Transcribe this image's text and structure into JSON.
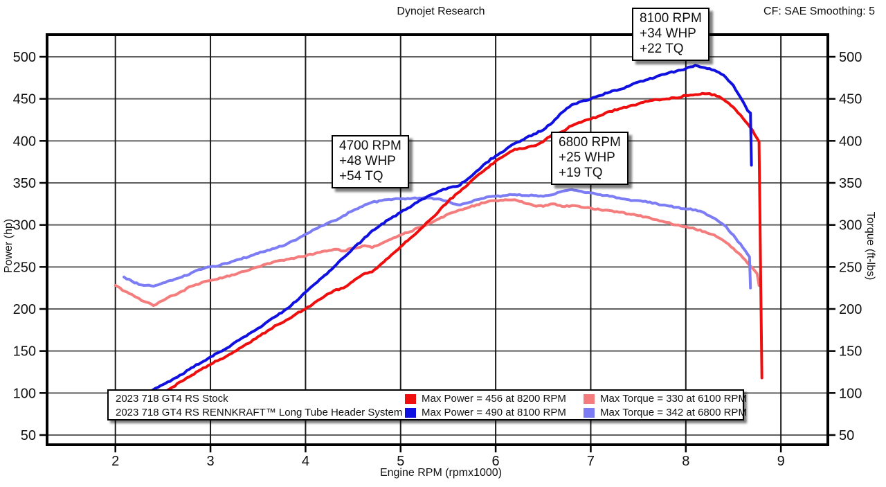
{
  "header": {
    "title": "Dynojet Research",
    "correction": "CF: SAE Smoothing: 5"
  },
  "axes": {
    "x_label": "Engine RPM (rpmx1000)",
    "y_left_label": "Power (hp)",
    "y_right_label": "Torque (ft-lbs)"
  },
  "annotations": [
    {
      "id": "8100",
      "lines": [
        "8100 RPM",
        "+34 WHP",
        "+22 TQ"
      ]
    },
    {
      "id": "4700",
      "lines": [
        "4700 RPM",
        "+48 WHP",
        "+54 TQ"
      ]
    },
    {
      "id": "6800",
      "lines": [
        "6800 RPM",
        "+25 WHP",
        "+19 TQ"
      ]
    }
  ],
  "legend": {
    "rows": [
      {
        "name": "2023 718 GT4 RS Stock",
        "power_label": "Max Power = 456 at 8200 RPM",
        "torque_label": "Max Torque = 330 at 6100 RPM"
      },
      {
        "name": "2023 718 GT4 RS RENNKRAFT™ Long Tube Header System",
        "power_label": "Max Power = 490 at 8100 RPM",
        "torque_label": "Max Torque = 342 at 6800 RPM"
      }
    ]
  },
  "chart_data": {
    "type": "line",
    "title": "Dynojet Research",
    "correction": "CF: SAE Smoothing: 5",
    "xlabel": "Engine RPM (rpmx1000)",
    "ylabel_left": "Power (hp)",
    "ylabel_right": "Torque (ft-lbs)",
    "x_ticks": [
      2,
      3,
      4,
      5,
      6,
      7,
      8,
      9
    ],
    "y_ticks": [
      50,
      100,
      150,
      200,
      250,
      300,
      350,
      400,
      450,
      500
    ],
    "x_range_rpm": [
      1270,
      9500
    ],
    "y_range": [
      37,
      527
    ],
    "grid": true,
    "legend_position": "bottom",
    "max_values": {
      "stock_max_power": {
        "value": 456,
        "rpm": 8200
      },
      "mod_max_power": {
        "value": 490,
        "rpm": 8100
      },
      "stock_max_torque": {
        "value": 330,
        "rpm": 6100
      },
      "mod_max_torque": {
        "value": 342,
        "rpm": 6800
      }
    },
    "colors": {
      "power_stock": "#ee0e0e",
      "power_mod": "#1010e0",
      "torque_stock": "#f47c7c",
      "torque_mod": "#7c7cf4",
      "grid_vertical": "#1a1a1a",
      "grid_horizontal": "#5f5f5f",
      "border": "#000000"
    },
    "series": [
      {
        "name": "Stock Torque (ft-lbs)",
        "role": "torque_stock",
        "color": "#f47c7c",
        "axis": "right",
        "points": [
          [
            2000,
            228
          ],
          [
            2100,
            221
          ],
          [
            2200,
            215
          ],
          [
            2300,
            209
          ],
          [
            2400,
            204
          ],
          [
            2500,
            210
          ],
          [
            2600,
            216
          ],
          [
            2700,
            221
          ],
          [
            2800,
            227
          ],
          [
            2900,
            231
          ],
          [
            3000,
            234
          ],
          [
            3100,
            237
          ],
          [
            3200,
            239
          ],
          [
            3300,
            243
          ],
          [
            3400,
            246
          ],
          [
            3500,
            250
          ],
          [
            3600,
            254
          ],
          [
            3700,
            257
          ],
          [
            3800,
            259
          ],
          [
            3900,
            261
          ],
          [
            4000,
            263
          ],
          [
            4100,
            266
          ],
          [
            4200,
            269
          ],
          [
            4300,
            271
          ],
          [
            4400,
            269
          ],
          [
            4500,
            272
          ],
          [
            4600,
            275
          ],
          [
            4700,
            273
          ],
          [
            4800,
            278
          ],
          [
            4900,
            283
          ],
          [
            5000,
            288
          ],
          [
            5100,
            292
          ],
          [
            5200,
            297
          ],
          [
            5300,
            302
          ],
          [
            5400,
            307
          ],
          [
            5500,
            313
          ],
          [
            5600,
            317
          ],
          [
            5700,
            320
          ],
          [
            5800,
            324
          ],
          [
            5900,
            327
          ],
          [
            6000,
            329
          ],
          [
            6100,
            330
          ],
          [
            6200,
            330
          ],
          [
            6300,
            326
          ],
          [
            6400,
            323
          ],
          [
            6500,
            322
          ],
          [
            6600,
            325
          ],
          [
            6700,
            322
          ],
          [
            6800,
            323
          ],
          [
            6900,
            321
          ],
          [
            7000,
            320
          ],
          [
            7100,
            318
          ],
          [
            7200,
            317
          ],
          [
            7300,
            315
          ],
          [
            7400,
            313
          ],
          [
            7500,
            311
          ],
          [
            7600,
            309
          ],
          [
            7700,
            306
          ],
          [
            7800,
            303
          ],
          [
            7900,
            300
          ],
          [
            8000,
            298
          ],
          [
            8100,
            295
          ],
          [
            8200,
            292
          ],
          [
            8300,
            288
          ],
          [
            8400,
            281
          ],
          [
            8500,
            272
          ],
          [
            8600,
            261
          ],
          [
            8700,
            249
          ],
          [
            8750,
            242
          ],
          [
            8770,
            228
          ]
        ]
      },
      {
        "name": "RENNKRAFT Torque (ft-lbs)",
        "role": "torque_mod",
        "color": "#7c7cf4",
        "axis": "right",
        "points": [
          [
            2090,
            238
          ],
          [
            2200,
            231
          ],
          [
            2300,
            228
          ],
          [
            2400,
            227
          ],
          [
            2500,
            231
          ],
          [
            2600,
            234
          ],
          [
            2700,
            238
          ],
          [
            2800,
            243
          ],
          [
            2900,
            247
          ],
          [
            3000,
            250
          ],
          [
            3100,
            252
          ],
          [
            3200,
            255
          ],
          [
            3300,
            259
          ],
          [
            3400,
            262
          ],
          [
            3500,
            266
          ],
          [
            3600,
            270
          ],
          [
            3700,
            273
          ],
          [
            3800,
            277
          ],
          [
            3900,
            282
          ],
          [
            4000,
            289
          ],
          [
            4100,
            295
          ],
          [
            4200,
            300
          ],
          [
            4300,
            305
          ],
          [
            4400,
            311
          ],
          [
            4500,
            317
          ],
          [
            4600,
            322
          ],
          [
            4700,
            327
          ],
          [
            4800,
            329
          ],
          [
            4900,
            330
          ],
          [
            5000,
            331
          ],
          [
            5100,
            331
          ],
          [
            5200,
            332
          ],
          [
            5300,
            332
          ],
          [
            5400,
            331
          ],
          [
            5500,
            328
          ],
          [
            5600,
            324
          ],
          [
            5700,
            326
          ],
          [
            5800,
            330
          ],
          [
            5900,
            333
          ],
          [
            6000,
            334
          ],
          [
            6100,
            335
          ],
          [
            6200,
            336
          ],
          [
            6300,
            335
          ],
          [
            6400,
            335
          ],
          [
            6500,
            334
          ],
          [
            6600,
            336
          ],
          [
            6700,
            340
          ],
          [
            6800,
            342
          ],
          [
            6900,
            340
          ],
          [
            7000,
            338
          ],
          [
            7100,
            336
          ],
          [
            7200,
            334
          ],
          [
            7300,
            332
          ],
          [
            7400,
            330
          ],
          [
            7500,
            329
          ],
          [
            7600,
            327
          ],
          [
            7700,
            325
          ],
          [
            7800,
            323
          ],
          [
            7900,
            321
          ],
          [
            8000,
            319
          ],
          [
            8100,
            318
          ],
          [
            8200,
            314
          ],
          [
            8300,
            308
          ],
          [
            8400,
            300
          ],
          [
            8500,
            288
          ],
          [
            8600,
            273
          ],
          [
            8650,
            265
          ],
          [
            8670,
            262
          ],
          [
            8680,
            225
          ]
        ]
      },
      {
        "name": "Stock Power (hp)",
        "role": "power_stock",
        "color": "#ee0e0e",
        "axis": "left",
        "points": [
          [
            2000,
            87
          ],
          [
            2100,
            88
          ],
          [
            2200,
            90
          ],
          [
            2300,
            92
          ],
          [
            2400,
            93
          ],
          [
            2500,
            100
          ],
          [
            2600,
            107
          ],
          [
            2700,
            114
          ],
          [
            2800,
            121
          ],
          [
            2900,
            128
          ],
          [
            3000,
            134
          ],
          [
            3100,
            140
          ],
          [
            3200,
            146
          ],
          [
            3300,
            153
          ],
          [
            3400,
            159
          ],
          [
            3500,
            167
          ],
          [
            3600,
            174
          ],
          [
            3700,
            181
          ],
          [
            3800,
            187
          ],
          [
            3900,
            194
          ],
          [
            4000,
            200
          ],
          [
            4100,
            208
          ],
          [
            4200,
            215
          ],
          [
            4300,
            222
          ],
          [
            4400,
            225
          ],
          [
            4500,
            233
          ],
          [
            4600,
            241
          ],
          [
            4700,
            244
          ],
          [
            4800,
            254
          ],
          [
            4900,
            264
          ],
          [
            5000,
            274
          ],
          [
            5100,
            284
          ],
          [
            5200,
            294
          ],
          [
            5300,
            305
          ],
          [
            5400,
            316
          ],
          [
            5500,
            328
          ],
          [
            5600,
            338
          ],
          [
            5700,
            347
          ],
          [
            5800,
            358
          ],
          [
            5900,
            367
          ],
          [
            6000,
            376
          ],
          [
            6100,
            383
          ],
          [
            6200,
            390
          ],
          [
            6300,
            391
          ],
          [
            6400,
            394
          ],
          [
            6500,
            399
          ],
          [
            6600,
            408
          ],
          [
            6700,
            411
          ],
          [
            6800,
            418
          ],
          [
            6900,
            422
          ],
          [
            7000,
            426
          ],
          [
            7100,
            430
          ],
          [
            7200,
            435
          ],
          [
            7300,
            438
          ],
          [
            7400,
            441
          ],
          [
            7500,
            444
          ],
          [
            7600,
            447
          ],
          [
            7700,
            449
          ],
          [
            7800,
            450
          ],
          [
            7900,
            451
          ],
          [
            8000,
            454
          ],
          [
            8100,
            455
          ],
          [
            8200,
            456
          ],
          [
            8300,
            455
          ],
          [
            8400,
            449
          ],
          [
            8500,
            440
          ],
          [
            8600,
            427
          ],
          [
            8700,
            413
          ],
          [
            8750,
            403
          ],
          [
            8770,
            399
          ],
          [
            8800,
            118
          ]
        ]
      },
      {
        "name": "RENNKRAFT Power (hp)",
        "role": "power_mod",
        "color": "#1010e0",
        "axis": "left",
        "points": [
          [
            2090,
            95
          ],
          [
            2200,
            97
          ],
          [
            2300,
            100
          ],
          [
            2400,
            104
          ],
          [
            2500,
            110
          ],
          [
            2600,
            116
          ],
          [
            2700,
            122
          ],
          [
            2800,
            130
          ],
          [
            2900,
            136
          ],
          [
            3000,
            143
          ],
          [
            3100,
            149
          ],
          [
            3200,
            155
          ],
          [
            3300,
            163
          ],
          [
            3400,
            170
          ],
          [
            3500,
            177
          ],
          [
            3600,
            185
          ],
          [
            3700,
            192
          ],
          [
            3800,
            200
          ],
          [
            3900,
            209
          ],
          [
            4000,
            220
          ],
          [
            4100,
            230
          ],
          [
            4200,
            240
          ],
          [
            4300,
            250
          ],
          [
            4400,
            261
          ],
          [
            4500,
            272
          ],
          [
            4600,
            282
          ],
          [
            4700,
            293
          ],
          [
            4800,
            301
          ],
          [
            4900,
            308
          ],
          [
            5000,
            315
          ],
          [
            5100,
            321
          ],
          [
            5200,
            329
          ],
          [
            5300,
            335
          ],
          [
            5400,
            340
          ],
          [
            5500,
            344
          ],
          [
            5600,
            346
          ],
          [
            5700,
            354
          ],
          [
            5800,
            364
          ],
          [
            5900,
            374
          ],
          [
            6000,
            382
          ],
          [
            6100,
            389
          ],
          [
            6200,
            397
          ],
          [
            6300,
            402
          ],
          [
            6400,
            408
          ],
          [
            6500,
            413
          ],
          [
            6600,
            422
          ],
          [
            6700,
            434
          ],
          [
            6800,
            443
          ],
          [
            6900,
            447
          ],
          [
            7000,
            450
          ],
          [
            7100,
            454
          ],
          [
            7200,
            458
          ],
          [
            7300,
            461
          ],
          [
            7400,
            465
          ],
          [
            7500,
            470
          ],
          [
            7600,
            473
          ],
          [
            7700,
            477
          ],
          [
            7800,
            480
          ],
          [
            7900,
            483
          ],
          [
            8000,
            486
          ],
          [
            8100,
            490
          ],
          [
            8200,
            487
          ],
          [
            8300,
            484
          ],
          [
            8400,
            478
          ],
          [
            8500,
            466
          ],
          [
            8600,
            447
          ],
          [
            8650,
            436
          ],
          [
            8680,
            433
          ],
          [
            8690,
            371
          ]
        ]
      }
    ]
  }
}
